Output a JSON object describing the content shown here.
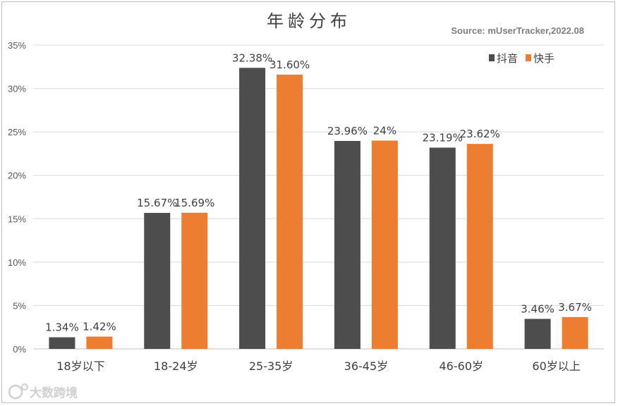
{
  "watermark": "大数跨境",
  "chart_data": {
    "type": "bar",
    "title": "年龄分布",
    "source": "Source:  mUserTracker,2022.08",
    "categories": [
      "18岁以下",
      "18-24岁",
      "25-35岁",
      "36-45岁",
      "46-60岁",
      "60岁以上"
    ],
    "ylim": [
      0,
      35
    ],
    "yticks": [
      0,
      5,
      10,
      15,
      20,
      25,
      30,
      35
    ],
    "ytick_labels": [
      "0%",
      "5%",
      "10%",
      "15%",
      "20%",
      "25%",
      "30%",
      "35%"
    ],
    "grid": true,
    "legend_position": "top-right",
    "series": [
      {
        "name": "抖音",
        "color": "#4d4d4d",
        "values": [
          1.34,
          15.67,
          32.38,
          23.96,
          23.19,
          3.46
        ],
        "labels": [
          "1.34%",
          "15.67%",
          "32.38%",
          "23.96%",
          "23.19%",
          "3.46%"
        ]
      },
      {
        "name": "快手",
        "color": "#ed7d31",
        "values": [
          1.42,
          15.69,
          31.6,
          24,
          23.62,
          3.67
        ],
        "labels": [
          "1.42%",
          "15.69%",
          "31.60%",
          "24%",
          "23.62%",
          "3.67%"
        ]
      }
    ]
  }
}
